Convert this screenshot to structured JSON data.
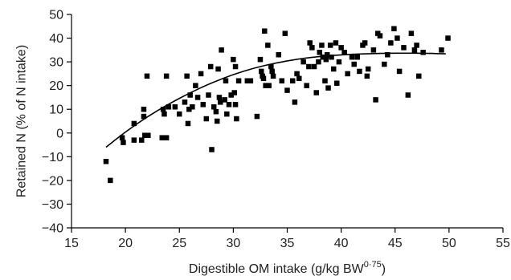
{
  "chart_data": {
    "type": "scatter",
    "xlabel_main": "Digestible OM intake (g/kg BW",
    "xlabel_sup": "0·75",
    "xlabel_close": ")",
    "ylabel": "Retained N (% of N intake)",
    "xlim": [
      15,
      55
    ],
    "ylim": [
      -40,
      50
    ],
    "xticks": [
      15,
      20,
      25,
      30,
      35,
      40,
      45,
      50,
      55
    ],
    "yticks": [
      50,
      40,
      30,
      20,
      10,
      0,
      -10,
      -20,
      -30,
      -40
    ],
    "grid": false,
    "legend": "none",
    "series": [
      {
        "points": [
          [
            18.2,
            -12
          ],
          [
            18.6,
            -20
          ],
          [
            19.7,
            -2
          ],
          [
            19.8,
            -4
          ],
          [
            20.8,
            -3
          ],
          [
            20.8,
            4
          ],
          [
            21.5,
            -3
          ],
          [
            21.7,
            7
          ],
          [
            21.7,
            10
          ],
          [
            21.8,
            -1
          ],
          [
            22.0,
            24
          ],
          [
            22.1,
            -1
          ],
          [
            23.4,
            -2
          ],
          [
            23.5,
            10
          ],
          [
            23.6,
            8
          ],
          [
            23.8,
            24
          ],
          [
            23.8,
            -2
          ],
          [
            24.0,
            11
          ],
          [
            24.6,
            11
          ],
          [
            25.0,
            8
          ],
          [
            25.5,
            13
          ],
          [
            25.7,
            24
          ],
          [
            25.8,
            4
          ],
          [
            25.9,
            10
          ],
          [
            26.0,
            16
          ],
          [
            26.2,
            11
          ],
          [
            26.5,
            20
          ],
          [
            26.7,
            15
          ],
          [
            27.0,
            25
          ],
          [
            27.2,
            12
          ],
          [
            27.5,
            6
          ],
          [
            27.7,
            16
          ],
          [
            27.9,
            28
          ],
          [
            28.0,
            -7
          ],
          [
            28.2,
            11
          ],
          [
            28.4,
            9
          ],
          [
            28.5,
            5
          ],
          [
            28.6,
            27
          ],
          [
            28.7,
            15
          ],
          [
            28.8,
            13
          ],
          [
            28.9,
            35
          ],
          [
            29.2,
            14
          ],
          [
            29.3,
            22
          ],
          [
            29.4,
            8
          ],
          [
            29.6,
            12
          ],
          [
            29.8,
            16
          ],
          [
            30.0,
            31
          ],
          [
            30.1,
            17
          ],
          [
            30.2,
            28
          ],
          [
            30.2,
            12
          ],
          [
            30.3,
            6
          ],
          [
            30.5,
            22
          ],
          [
            31.3,
            22
          ],
          [
            31.6,
            22
          ],
          [
            32.2,
            7
          ],
          [
            32.5,
            31
          ],
          [
            32.6,
            26
          ],
          [
            32.7,
            24
          ],
          [
            32.8,
            23
          ],
          [
            32.9,
            43
          ],
          [
            33.0,
            20
          ],
          [
            33.2,
            37
          ],
          [
            33.3,
            20
          ],
          [
            33.5,
            28
          ],
          [
            33.6,
            26
          ],
          [
            33.7,
            24
          ],
          [
            34.2,
            33
          ],
          [
            34.5,
            22
          ],
          [
            34.8,
            42
          ],
          [
            35.0,
            18
          ],
          [
            35.5,
            22
          ],
          [
            35.7,
            13
          ],
          [
            35.9,
            25
          ],
          [
            36.1,
            23
          ],
          [
            36.5,
            30
          ],
          [
            36.8,
            20
          ],
          [
            37.0,
            28
          ],
          [
            37.1,
            38
          ],
          [
            37.3,
            36
          ],
          [
            37.5,
            28
          ],
          [
            37.7,
            17
          ],
          [
            37.9,
            30
          ],
          [
            38.0,
            34
          ],
          [
            38.2,
            37
          ],
          [
            38.3,
            32
          ],
          [
            38.5,
            22
          ],
          [
            38.6,
            31
          ],
          [
            38.7,
            33
          ],
          [
            38.8,
            19
          ],
          [
            39.0,
            37
          ],
          [
            39.1,
            32
          ],
          [
            39.3,
            27
          ],
          [
            39.5,
            38
          ],
          [
            39.6,
            21
          ],
          [
            39.8,
            30
          ],
          [
            40.0,
            36
          ],
          [
            40.3,
            34
          ],
          [
            40.6,
            25
          ],
          [
            41.0,
            32
          ],
          [
            41.2,
            29
          ],
          [
            41.5,
            32
          ],
          [
            41.7,
            26
          ],
          [
            42.0,
            37
          ],
          [
            42.2,
            38
          ],
          [
            42.4,
            24
          ],
          [
            42.5,
            27
          ],
          [
            43.0,
            35
          ],
          [
            43.2,
            14
          ],
          [
            43.4,
            42
          ],
          [
            43.6,
            41
          ],
          [
            44.0,
            29
          ],
          [
            44.3,
            33
          ],
          [
            44.6,
            38
          ],
          [
            44.9,
            44
          ],
          [
            45.2,
            40
          ],
          [
            45.4,
            26
          ],
          [
            45.8,
            36
          ],
          [
            46.2,
            16
          ],
          [
            46.5,
            42
          ],
          [
            46.8,
            35
          ],
          [
            47.0,
            37
          ],
          [
            47.2,
            24
          ],
          [
            47.6,
            34
          ],
          [
            49.3,
            35
          ],
          [
            49.9,
            40
          ]
        ]
      }
    ],
    "fit_curve": {
      "type": "quadratic",
      "x_range": [
        18.2,
        49.7
      ],
      "points": [
        [
          18.2,
          -6
        ],
        [
          20,
          0.5
        ],
        [
          22,
          6.8
        ],
        [
          24,
          12.2
        ],
        [
          26,
          17
        ],
        [
          28,
          21.2
        ],
        [
          30,
          24.7
        ],
        [
          32,
          27.5
        ],
        [
          34,
          29.6
        ],
        [
          36,
          31.2
        ],
        [
          38,
          32.3
        ],
        [
          40,
          33
        ],
        [
          42,
          33.4
        ],
        [
          44,
          33.6
        ],
        [
          46,
          33.7
        ],
        [
          48,
          33.6
        ],
        [
          49.7,
          33.4
        ]
      ]
    }
  }
}
